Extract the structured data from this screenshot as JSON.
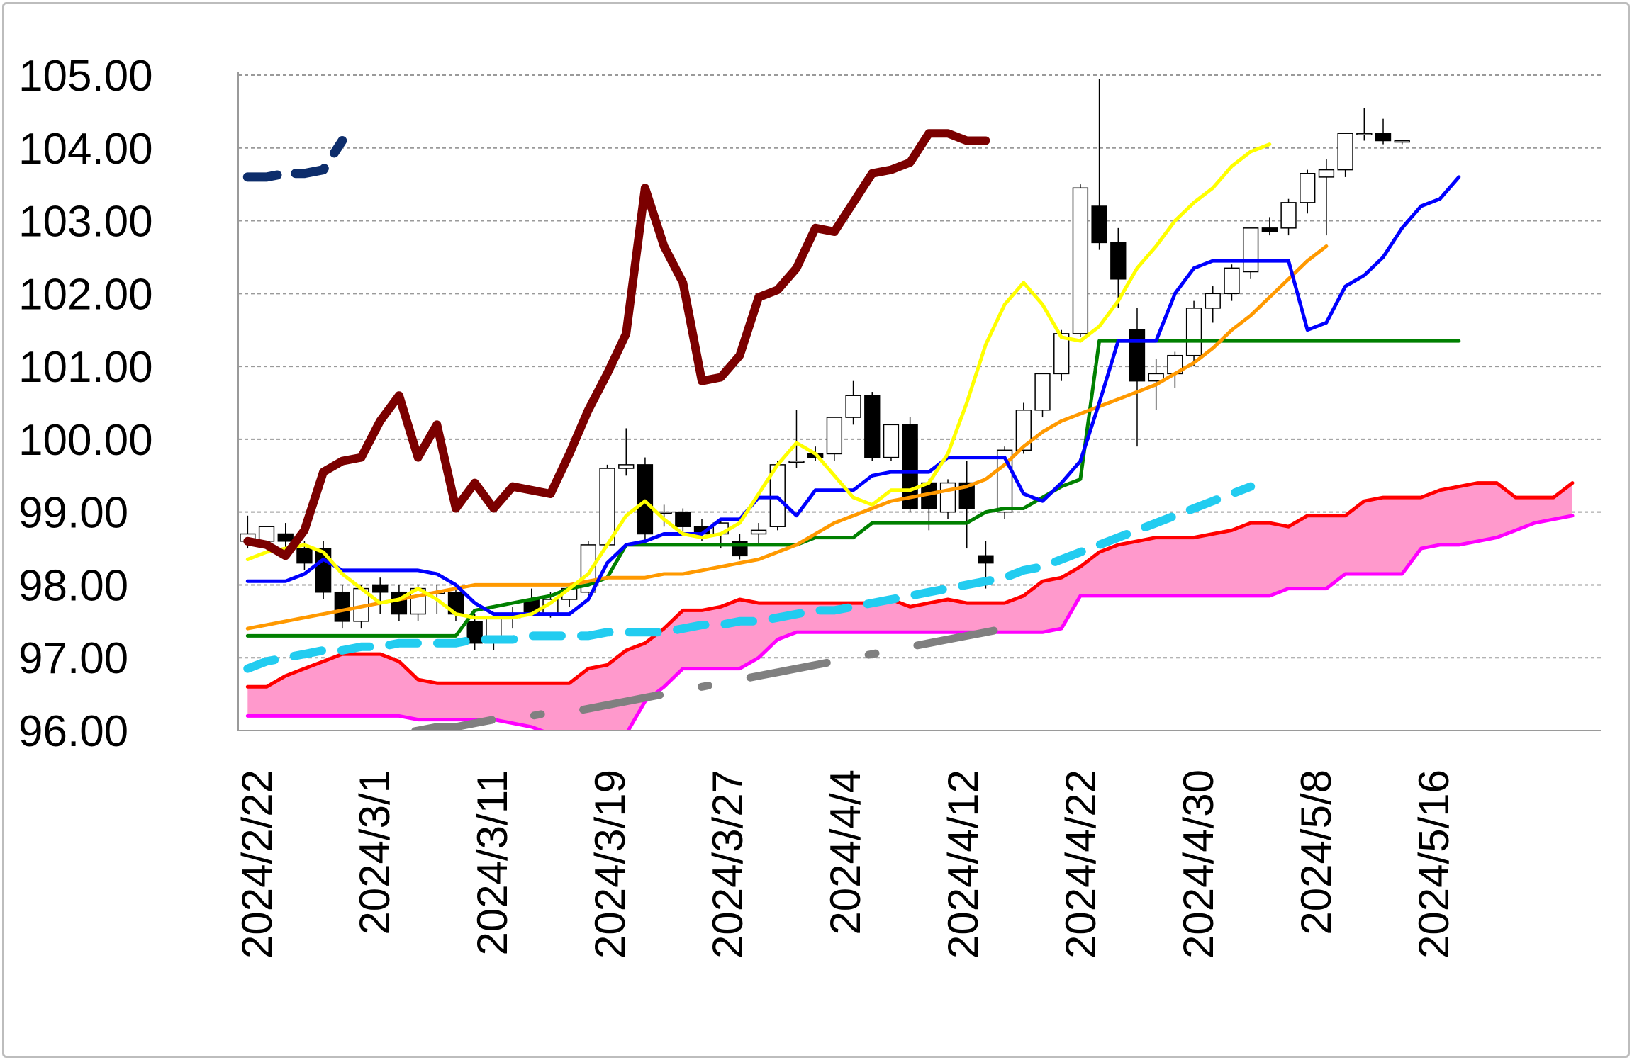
{
  "chart_data": {
    "type": "candlestick",
    "title": "",
    "xlabel": "",
    "ylabel": "",
    "ylim": [
      96.0,
      105.0
    ],
    "y_ticks": [
      "105.00",
      "104.00",
      "103.00",
      "102.00",
      "101.00",
      "100.00",
      "99.00",
      "98.00",
      "97.00",
      "96.00"
    ],
    "y_tick_values": [
      105,
      104,
      103,
      102,
      101,
      100,
      99,
      98,
      97,
      96
    ],
    "x_ticks": [
      "2024/2/22",
      "2024/3/1",
      "2024/3/11",
      "2024/3/19",
      "2024/3/27",
      "2024/4/4",
      "2024/4/12",
      "2024/4/22",
      "2024/4/30",
      "2024/5/8",
      "2024/5/16"
    ],
    "grid": "horizontal dashed",
    "n_slots": 72,
    "candles": [
      [
        98.6,
        98.95,
        98.5,
        98.7
      ],
      [
        98.6,
        98.8,
        98.5,
        98.8
      ],
      [
        98.7,
        98.85,
        98.4,
        98.6
      ],
      [
        98.5,
        98.6,
        98.2,
        98.3
      ],
      [
        98.5,
        98.6,
        97.8,
        97.9
      ],
      [
        97.9,
        98.0,
        97.4,
        97.5
      ],
      [
        97.5,
        98.0,
        97.4,
        97.95
      ],
      [
        98.0,
        98.1,
        97.6,
        97.9
      ],
      [
        97.9,
        98.0,
        97.5,
        97.6
      ],
      [
        97.6,
        98.0,
        97.5,
        97.95
      ],
      [
        97.9,
        98.0,
        97.6,
        97.9
      ],
      [
        97.9,
        97.95,
        97.5,
        97.6
      ],
      [
        97.5,
        97.6,
        97.1,
        97.2
      ],
      [
        97.2,
        97.6,
        97.1,
        97.55
      ],
      [
        97.55,
        97.7,
        97.4,
        97.6
      ],
      [
        97.8,
        97.95,
        97.6,
        97.6
      ],
      [
        97.6,
        97.9,
        97.55,
        97.8
      ],
      [
        97.8,
        98.0,
        97.7,
        97.95
      ],
      [
        97.9,
        98.6,
        97.8,
        98.55
      ],
      [
        98.55,
        99.65,
        98.5,
        99.6
      ],
      [
        99.6,
        100.15,
        99.5,
        99.65
      ],
      [
        99.65,
        99.75,
        98.6,
        98.7
      ],
      [
        99.0,
        99.1,
        98.8,
        99.0
      ],
      [
        99.0,
        99.05,
        98.7,
        98.8
      ],
      [
        98.8,
        98.9,
        98.6,
        98.7
      ],
      [
        98.7,
        98.9,
        98.5,
        98.85
      ],
      [
        98.6,
        98.7,
        98.35,
        98.4
      ],
      [
        98.7,
        98.85,
        98.55,
        98.75
      ],
      [
        98.8,
        99.7,
        98.75,
        99.65
      ],
      [
        99.7,
        100.4,
        99.6,
        99.7
      ],
      [
        99.8,
        99.9,
        99.7,
        99.75
      ],
      [
        99.8,
        100.3,
        99.7,
        100.3
      ],
      [
        100.3,
        100.8,
        100.2,
        100.6
      ],
      [
        100.6,
        100.65,
        99.7,
        99.75
      ],
      [
        99.75,
        100.2,
        99.7,
        100.2
      ],
      [
        100.2,
        100.3,
        99.0,
        99.05
      ],
      [
        99.4,
        99.45,
        98.75,
        99.05
      ],
      [
        99.0,
        99.45,
        98.9,
        99.4
      ],
      [
        99.4,
        99.7,
        98.5,
        99.05
      ],
      [
        98.4,
        98.6,
        97.95,
        98.3
      ],
      [
        99.0,
        99.9,
        98.9,
        99.85
      ],
      [
        99.85,
        100.5,
        99.8,
        100.4
      ],
      [
        100.4,
        100.9,
        100.3,
        100.9
      ],
      [
        100.9,
        101.5,
        100.8,
        101.45
      ],
      [
        101.45,
        103.5,
        101.4,
        103.45
      ],
      [
        103.2,
        104.95,
        102.6,
        102.7
      ],
      [
        102.7,
        102.9,
        101.8,
        102.2
      ],
      [
        101.5,
        101.8,
        99.9,
        100.8
      ],
      [
        100.8,
        101.1,
        100.4,
        100.9
      ],
      [
        100.9,
        101.2,
        100.7,
        101.15
      ],
      [
        101.15,
        101.9,
        101.0,
        101.8
      ],
      [
        101.8,
        102.1,
        101.6,
        102.0
      ],
      [
        102.0,
        102.4,
        101.9,
        102.35
      ],
      [
        102.3,
        102.9,
        102.2,
        102.9
      ],
      [
        102.9,
        103.05,
        102.8,
        102.85
      ],
      [
        102.9,
        103.3,
        102.8,
        103.25
      ],
      [
        103.25,
        103.7,
        103.1,
        103.65
      ],
      [
        103.6,
        103.85,
        102.8,
        103.7
      ],
      [
        103.7,
        104.2,
        103.6,
        104.2
      ],
      [
        104.2,
        104.55,
        104.1,
        104.2
      ],
      [
        104.2,
        104.4,
        104.05,
        104.1
      ],
      [
        104.1,
        104.1,
        104.05,
        104.1
      ]
    ],
    "series": [
      {
        "style": "chikou",
        "color": "#7b0000",
        "start_slot": 0,
        "values": [
          98.6,
          98.55,
          98.4,
          98.75,
          99.55,
          99.7,
          99.75,
          100.25,
          100.6,
          99.75,
          100.2,
          99.05,
          99.4,
          99.05,
          99.35,
          99.3,
          99.25,
          99.8,
          100.4,
          100.9,
          101.45,
          103.45,
          102.65,
          102.15,
          100.8,
          100.85,
          101.15,
          101.95,
          102.05,
          102.35,
          102.9,
          102.85,
          103.25,
          103.65,
          103.7,
          103.8,
          104.2,
          104.2,
          104.1,
          104.1
        ]
      },
      {
        "style": "tenkan",
        "color": "#0000ff",
        "start_slot": 0,
        "values": [
          98.05,
          98.05,
          98.05,
          98.15,
          98.35,
          98.2,
          98.2,
          98.2,
          98.2,
          98.2,
          98.15,
          98.0,
          97.75,
          97.6,
          97.6,
          97.6,
          97.6,
          97.6,
          97.8,
          98.3,
          98.55,
          98.6,
          98.7,
          98.7,
          98.7,
          98.9,
          98.9,
          99.2,
          99.2,
          98.95,
          99.3,
          99.3,
          99.3,
          99.5,
          99.55,
          99.55,
          99.55,
          99.75,
          99.75,
          99.75,
          99.75,
          99.25,
          99.15,
          99.4,
          99.7,
          100.5,
          101.35,
          101.35,
          101.35,
          102.0,
          102.35,
          102.45,
          102.45,
          102.45,
          102.45,
          102.45,
          101.5,
          101.6,
          102.1,
          102.25,
          102.5,
          102.9,
          103.2,
          103.3,
          103.6
        ]
      },
      {
        "style": "kijun",
        "color": "#008000",
        "start_slot": 0,
        "values": [
          97.3,
          97.3,
          97.3,
          97.3,
          97.3,
          97.3,
          97.3,
          97.3,
          97.3,
          97.3,
          97.3,
          97.3,
          97.65,
          97.7,
          97.75,
          97.8,
          97.85,
          97.95,
          98.0,
          98.1,
          98.55,
          98.55,
          98.55,
          98.55,
          98.55,
          98.55,
          98.55,
          98.55,
          98.55,
          98.55,
          98.65,
          98.65,
          98.65,
          98.85,
          98.85,
          98.85,
          98.85,
          98.85,
          98.85,
          99.0,
          99.05,
          99.05,
          99.2,
          99.35,
          99.45,
          101.35,
          101.35,
          101.35,
          101.35,
          101.35,
          101.35,
          101.35,
          101.35,
          101.35,
          101.35,
          101.35,
          101.35,
          101.35,
          101.35,
          101.35,
          101.35,
          101.35,
          101.35,
          101.35,
          101.35
        ]
      },
      {
        "style": "ma_fast",
        "color": "#ffff00",
        "start_slot": 0,
        "values": [
          98.35,
          98.45,
          98.5,
          98.55,
          98.45,
          98.15,
          97.95,
          97.75,
          97.8,
          97.95,
          97.8,
          97.6,
          97.55,
          97.55,
          97.55,
          97.6,
          97.75,
          97.95,
          98.15,
          98.55,
          98.95,
          99.15,
          98.9,
          98.7,
          98.65,
          98.7,
          98.85,
          99.25,
          99.65,
          99.95,
          99.8,
          99.5,
          99.2,
          99.1,
          99.3,
          99.3,
          99.4,
          99.8,
          100.5,
          101.3,
          101.85,
          102.15,
          101.85,
          101.4,
          101.35,
          101.55,
          101.9,
          102.35,
          102.65,
          103.0,
          103.25,
          103.45,
          103.75,
          103.95,
          104.05
        ]
      },
      {
        "style": "ma_slow",
        "color": "#ff9900",
        "start_slot": 0,
        "values": [
          97.4,
          97.45,
          97.5,
          97.55,
          97.6,
          97.65,
          97.7,
          97.75,
          97.8,
          97.85,
          97.9,
          97.95,
          98.0,
          98.0,
          98.0,
          98.0,
          98.0,
          98.0,
          98.05,
          98.1,
          98.1,
          98.1,
          98.15,
          98.15,
          98.2,
          98.25,
          98.3,
          98.35,
          98.45,
          98.55,
          98.7,
          98.85,
          98.95,
          99.05,
          99.15,
          99.2,
          99.25,
          99.3,
          99.35,
          99.45,
          99.65,
          99.9,
          100.1,
          100.25,
          100.35,
          100.45,
          100.55,
          100.65,
          100.75,
          100.9,
          101.05,
          101.25,
          101.5,
          101.7,
          101.95,
          102.2,
          102.45,
          102.65
        ]
      },
      {
        "style": "senkou_a",
        "color": "#ff0000",
        "start_slot": 0,
        "values": [
          96.6,
          96.6,
          96.75,
          96.85,
          96.95,
          97.05,
          97.05,
          97.05,
          96.95,
          96.7,
          96.65,
          96.65,
          96.65,
          96.65,
          96.65,
          96.65,
          96.65,
          96.65,
          96.85,
          96.9,
          97.1,
          97.2,
          97.4,
          97.65,
          97.65,
          97.7,
          97.8,
          97.75,
          97.75,
          97.75,
          97.75,
          97.75,
          97.75,
          97.75,
          97.8,
          97.7,
          97.75,
          97.8,
          97.75,
          97.75,
          97.75,
          97.85,
          98.05,
          98.1,
          98.25,
          98.45,
          98.55,
          98.6,
          98.65,
          98.65,
          98.65,
          98.7,
          98.75,
          98.85,
          98.85,
          98.8,
          98.95,
          98.95,
          98.95,
          99.15,
          99.2,
          99.2,
          99.2,
          99.3,
          99.35,
          99.4,
          99.4,
          99.2,
          99.2,
          99.2,
          99.4
        ]
      },
      {
        "style": "senkou_b",
        "color": "#ff00ff",
        "start_slot": 0,
        "values": [
          96.2,
          96.2,
          96.2,
          96.2,
          96.2,
          96.2,
          96.2,
          96.2,
          96.2,
          96.15,
          96.15,
          96.15,
          96.15,
          96.15,
          96.1,
          96.05,
          95.95,
          95.95,
          95.95,
          95.95,
          95.95,
          96.4,
          96.6,
          96.85,
          96.85,
          96.85,
          96.85,
          97.0,
          97.25,
          97.35,
          97.35,
          97.35,
          97.35,
          97.35,
          97.35,
          97.35,
          97.35,
          97.35,
          97.35,
          97.35,
          97.35,
          97.35,
          97.35,
          97.4,
          97.85,
          97.85,
          97.85,
          97.85,
          97.85,
          97.85,
          97.85,
          97.85,
          97.85,
          97.85,
          97.85,
          97.95,
          97.95,
          97.95,
          98.15,
          98.15,
          98.15,
          98.15,
          98.5,
          98.55,
          98.55,
          98.6,
          98.65,
          98.75,
          98.85,
          98.9,
          98.95
        ]
      },
      {
        "style": "ma_dashed",
        "color": "#22ccf0",
        "start_slot": 0,
        "values": [
          96.85,
          96.95,
          97.0,
          97.05,
          97.1,
          97.1,
          97.15,
          97.15,
          97.2,
          97.2,
          97.2,
          97.2,
          97.25,
          97.25,
          97.25,
          97.3,
          97.3,
          97.3,
          97.3,
          97.35,
          97.35,
          97.35,
          97.35,
          97.4,
          97.45,
          97.45,
          97.5,
          97.5,
          97.55,
          97.6,
          97.65,
          97.65,
          97.7,
          97.75,
          97.8,
          97.85,
          97.9,
          97.95,
          98.0,
          98.05,
          98.1,
          98.2,
          98.25,
          98.35,
          98.45,
          98.55,
          98.65,
          98.75,
          98.85,
          98.95,
          99.05,
          99.15,
          99.25,
          99.35
        ]
      },
      {
        "style": "ma_dashdot",
        "color": "#808080",
        "start_slot": 0,
        "values": [
          95.6,
          95.65,
          95.7,
          95.75,
          95.8,
          95.85,
          95.9,
          95.95,
          95.95,
          96.0,
          96.05,
          96.05,
          96.1,
          96.15,
          96.15,
          96.2,
          96.25,
          96.25,
          96.3,
          96.35,
          96.4,
          96.45,
          96.5,
          96.55,
          96.6,
          96.65,
          96.7,
          96.75,
          96.8,
          96.85,
          96.9,
          96.95,
          97.0,
          97.05,
          97.1,
          97.15,
          97.2,
          97.25,
          97.3,
          97.35,
          97.4
        ]
      },
      {
        "style": "forecast",
        "color": "#0d2d6b",
        "start_slot": 0,
        "values": [
          103.6,
          103.6,
          103.65,
          103.65,
          103.7,
          104.1
        ]
      }
    ],
    "candle_up_fill": "#ffffff",
    "candle_down_fill": "#000000",
    "cloud_fill": "#ff99cc"
  }
}
